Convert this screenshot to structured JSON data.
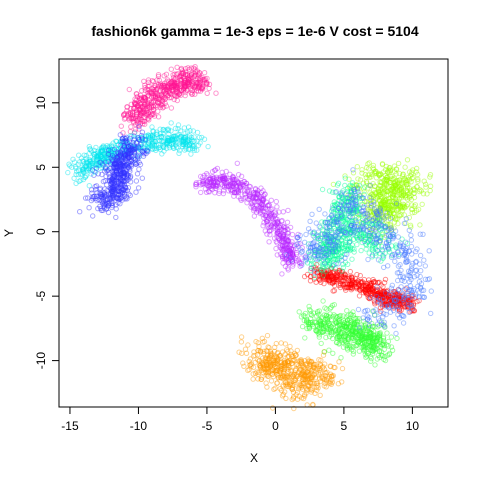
{
  "chart_data": {
    "type": "scatter",
    "title": "fashion6k gamma = 1e-3 eps = 1e-6 V cost = 5104",
    "xlabel": "X",
    "ylabel": "Y",
    "xlim": [
      -15.8,
      12.6
    ],
    "ylim": [
      -13.6,
      13.4
    ],
    "xticks": [
      -15,
      -10,
      -5,
      0,
      5,
      10
    ],
    "yticks": [
      -10,
      -5,
      0,
      5,
      10
    ],
    "grid": false,
    "legend": "none",
    "marker": "open circle, semi-transparent",
    "points_per_cluster": 500,
    "series": [
      {
        "color": "#ff1493",
        "cluster": {
          "path": [
            [
              -10.5,
              8.5
            ],
            [
              -9.5,
              10.0
            ],
            [
              -8.0,
              11.0
            ],
            [
              -6.5,
              11.8
            ],
            [
              -5.5,
              11.5
            ]
          ],
          "spread": 0.55
        }
      },
      {
        "color": "#00e5ee",
        "cluster": {
          "path": [
            [
              -14.5,
              4.5
            ],
            [
              -13.0,
              5.8
            ],
            [
              -11.5,
              6.2
            ],
            [
              -9.5,
              7.0
            ],
            [
              -7.5,
              7.2
            ],
            [
              -5.8,
              7.0
            ]
          ],
          "spread": 0.45
        }
      },
      {
        "color": "#3333ff",
        "cluster": {
          "path": [
            [
              -12.8,
              2.3
            ],
            [
              -11.5,
              3.0
            ],
            [
              -11.8,
              4.5
            ],
            [
              -11.0,
              5.5
            ],
            [
              -10.3,
              6.8
            ]
          ],
          "spread": 0.6
        }
      },
      {
        "color": "#b829ff",
        "cluster": {
          "path": [
            [
              -5.5,
              3.8
            ],
            [
              -3.5,
              3.9
            ],
            [
              -1.8,
              3.0
            ],
            [
              -0.2,
              1.0
            ],
            [
              0.8,
              -1.0
            ],
            [
              1.2,
              -2.3
            ]
          ],
          "spread": 0.4
        }
      },
      {
        "color": "#ff9900",
        "cluster": {
          "path": [
            [
              -1.2,
              -9.5
            ],
            [
              0.0,
              -10.5
            ],
            [
              1.5,
              -10.8
            ],
            [
              3.5,
              -11.0
            ],
            [
              1.0,
              -12.3
            ]
          ],
          "spread": 0.7
        }
      },
      {
        "color": "#33ff33",
        "cluster": {
          "path": [
            [
              2.5,
              -6.8
            ],
            [
              4.0,
              -7.0
            ],
            [
              5.5,
              -7.5
            ],
            [
              7.0,
              -8.0
            ],
            [
              7.5,
              -9.0
            ],
            [
              4.5,
              -8.3
            ]
          ],
          "spread": 0.6
        }
      },
      {
        "color": "#ff0000",
        "cluster": {
          "path": [
            [
              2.8,
              -3.2
            ],
            [
              5.0,
              -3.8
            ],
            [
              7.0,
              -4.5
            ],
            [
              8.5,
              -5.3
            ],
            [
              9.8,
              -5.6
            ]
          ],
          "spread": 0.35
        }
      },
      {
        "color": "#99ff00",
        "cluster": {
          "path": [
            [
              6.0,
              3.5
            ],
            [
              8.0,
              4.0
            ],
            [
              10.0,
              3.5
            ],
            [
              7.5,
              2.3
            ],
            [
              9.0,
              1.5
            ],
            [
              6.5,
              1.0
            ]
          ],
          "spread": 0.7
        }
      },
      {
        "color": "#00ff99",
        "cluster": {
          "path": [
            [
              5.5,
              3.0
            ],
            [
              5.0,
              1.0
            ],
            [
              4.0,
              -1.0
            ],
            [
              3.5,
              -2.5
            ],
            [
              6.5,
              0.5
            ],
            [
              8.0,
              -1.5
            ]
          ],
          "spread": 0.7
        }
      },
      {
        "color": "#4477ff",
        "cluster": {
          "path": [
            [
              2.5,
              -1.8
            ],
            [
              4.0,
              -0.5
            ],
            [
              5.5,
              2.5
            ],
            [
              7.5,
              0.0
            ],
            [
              9.5,
              -2.0
            ],
            [
              10.0,
              -5.0
            ],
            [
              7.0,
              -6.5
            ]
          ],
          "spread": 0.8
        }
      }
    ]
  }
}
